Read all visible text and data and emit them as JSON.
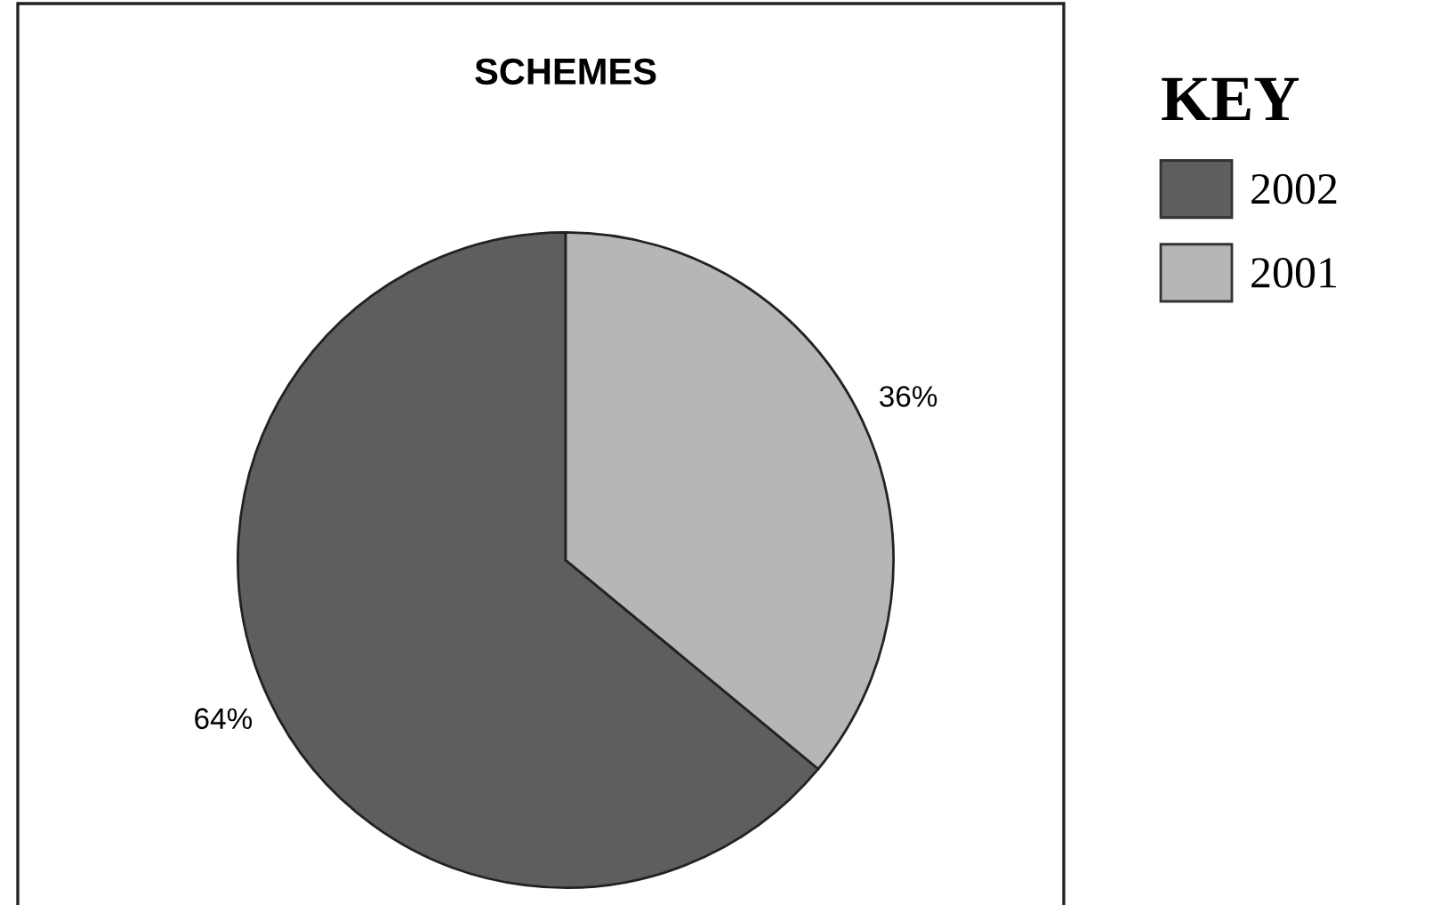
{
  "chart_data": {
    "type": "pie",
    "title": "SCHEMES",
    "legend_title": "KEY",
    "categories": [
      "2002",
      "2001"
    ],
    "values": [
      64,
      36
    ],
    "colors": [
      "#5e5e5e",
      "#b6b6b6"
    ],
    "value_labels": [
      "64%",
      "36%"
    ],
    "legend": "right"
  }
}
